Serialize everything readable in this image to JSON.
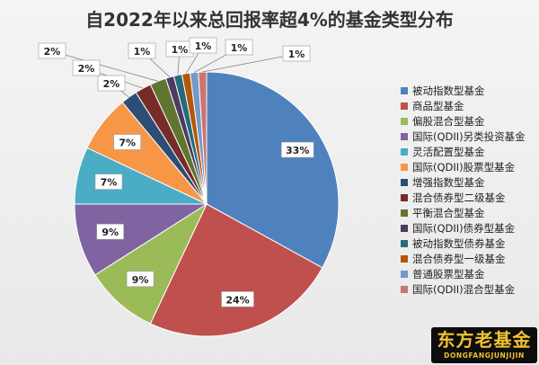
{
  "chart_data": {
    "type": "pie",
    "title": "自2022年以来总回报率超4%的基金类型分布",
    "categories": [
      "被动指数型基金",
      "商品型基金",
      "偏股混合型基金",
      "国际(QDII)另类投资基金",
      "灵活配置型基金",
      "国际(QDII)股票型基金",
      "增强指数型基金",
      "混合债券型二级基金",
      "平衡混合型基金",
      "国际(QDII)债券型基金",
      "被动指数型债券基金",
      "混合债券型一级基金",
      "普通股票型基金",
      "国际(QDII)混合型基金"
    ],
    "values": [
      33,
      24,
      9,
      9,
      7,
      7,
      2,
      2,
      2,
      1,
      1,
      1,
      1,
      1
    ],
    "data_labels": [
      "33%",
      "24%",
      "9%",
      "9%",
      "7%",
      "7%",
      "2%",
      "2%",
      "2%",
      "1%",
      "1%",
      "1%",
      "1%",
      "1%"
    ],
    "colors": [
      "#4f81bd",
      "#c0504d",
      "#9bbb59",
      "#8064a2",
      "#4bacc6",
      "#f79646",
      "#2c4d75",
      "#772c2a",
      "#5f7530",
      "#4d3b62",
      "#276a7c",
      "#b65708",
      "#729aca",
      "#cd7371"
    ],
    "legend_position": "right"
  },
  "watermark": {
    "main": "东方老基金",
    "sub": "DONGFANGJUNJIJIN"
  }
}
